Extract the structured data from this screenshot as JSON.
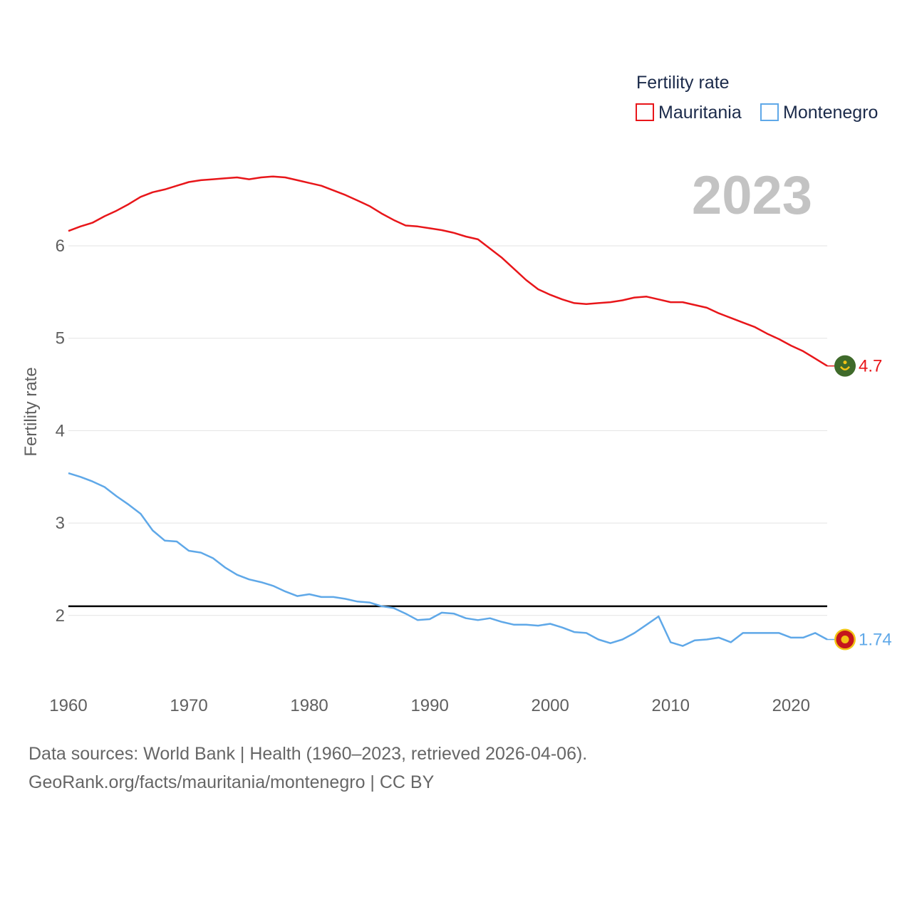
{
  "chart_data": {
    "type": "line",
    "ylabel": "Fertility rate",
    "xlabel": "",
    "year_label": "2023",
    "legend": {
      "title": "Fertility rate",
      "placement": "top-right"
    },
    "xlim": [
      1960,
      2023
    ],
    "ylim": [
      1.2,
      7.0
    ],
    "x_ticks": [
      1960,
      1970,
      1980,
      1990,
      2000,
      2010,
      2020
    ],
    "y_ticks": [
      2,
      3,
      4,
      5,
      6
    ],
    "reference_line": {
      "value": 2.1,
      "color": "#000000"
    },
    "x": [
      1960,
      1961,
      1962,
      1963,
      1964,
      1965,
      1966,
      1967,
      1968,
      1969,
      1970,
      1971,
      1972,
      1973,
      1974,
      1975,
      1976,
      1977,
      1978,
      1979,
      1980,
      1981,
      1982,
      1983,
      1984,
      1985,
      1986,
      1987,
      1988,
      1989,
      1990,
      1991,
      1992,
      1993,
      1994,
      1995,
      1996,
      1997,
      1998,
      1999,
      2000,
      2001,
      2002,
      2003,
      2004,
      2005,
      2006,
      2007,
      2008,
      2009,
      2010,
      2011,
      2012,
      2013,
      2014,
      2015,
      2016,
      2017,
      2018,
      2019,
      2020,
      2021,
      2022,
      2023
    ],
    "series": [
      {
        "name": "Mauritania",
        "color": "#e8161a",
        "end_label": "4.7",
        "flag_icon": "mauritania-flag-icon",
        "values": [
          6.16,
          6.21,
          6.25,
          6.32,
          6.38,
          6.45,
          6.53,
          6.58,
          6.61,
          6.65,
          6.69,
          6.71,
          6.72,
          6.73,
          6.74,
          6.72,
          6.74,
          6.75,
          6.74,
          6.71,
          6.68,
          6.65,
          6.6,
          6.55,
          6.49,
          6.43,
          6.35,
          6.28,
          6.22,
          6.21,
          6.19,
          6.17,
          6.14,
          6.1,
          6.07,
          5.97,
          5.87,
          5.75,
          5.63,
          5.53,
          5.47,
          5.42,
          5.38,
          5.37,
          5.38,
          5.39,
          5.41,
          5.44,
          5.45,
          5.42,
          5.39,
          5.39,
          5.36,
          5.33,
          5.27,
          5.22,
          5.17,
          5.12,
          5.05,
          4.99,
          4.92,
          4.86,
          4.78,
          4.7
        ]
      },
      {
        "name": "Montenegro",
        "color": "#5fa8e8",
        "end_label": "1.74",
        "flag_icon": "montenegro-flag-icon",
        "values": [
          3.54,
          3.5,
          3.45,
          3.39,
          3.29,
          3.2,
          3.1,
          2.92,
          2.81,
          2.8,
          2.7,
          2.68,
          2.62,
          2.52,
          2.44,
          2.39,
          2.36,
          2.32,
          2.26,
          2.21,
          2.23,
          2.2,
          2.2,
          2.18,
          2.15,
          2.14,
          2.1,
          2.08,
          2.02,
          1.95,
          1.96,
          2.03,
          2.02,
          1.97,
          1.95,
          1.97,
          1.93,
          1.9,
          1.9,
          1.89,
          1.91,
          1.87,
          1.82,
          1.81,
          1.74,
          1.7,
          1.74,
          1.81,
          1.9,
          1.99,
          1.71,
          1.67,
          1.73,
          1.74,
          1.76,
          1.71,
          1.81,
          1.81,
          1.81,
          1.81,
          1.76,
          1.76,
          1.81,
          1.74
        ]
      }
    ]
  },
  "footer": {
    "sources": "Data sources: World Bank | Health (1960–2023, retrieved 2026-04-06).",
    "attribution": "GeoRank.org/facts/mauritania/montenegro | CC BY"
  }
}
